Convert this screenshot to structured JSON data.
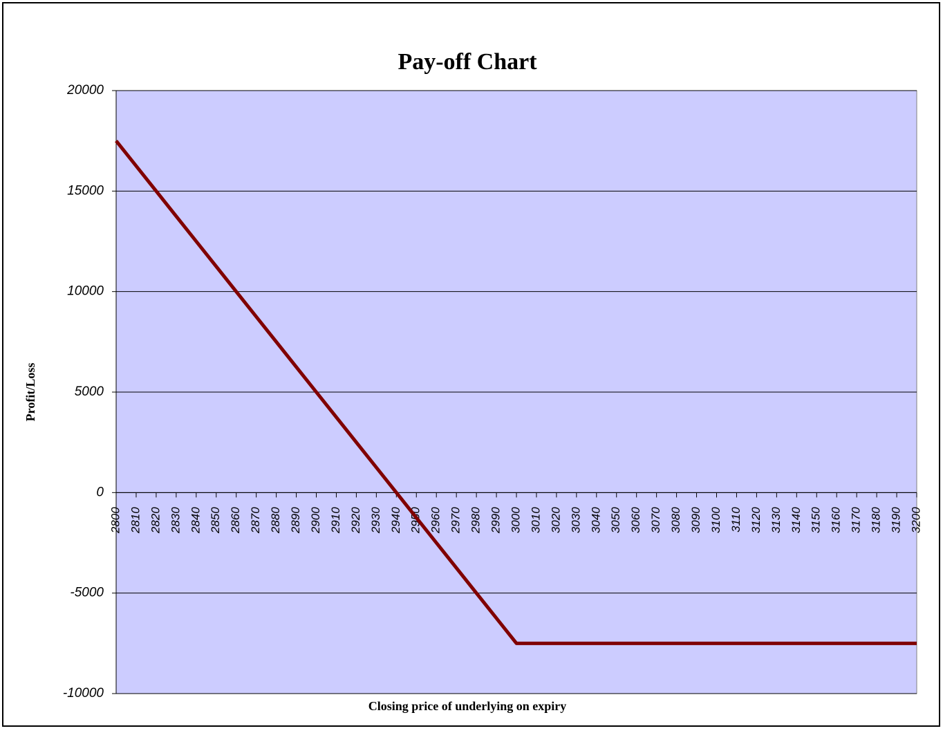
{
  "chart_data": {
    "type": "line",
    "title": "Pay-off Chart",
    "x_label": "Closing price of underlying on expiry",
    "y_label": "Profit/Loss",
    "x": [
      2800,
      2810,
      2820,
      2830,
      2840,
      2850,
      2860,
      2870,
      2880,
      2890,
      2900,
      2910,
      2920,
      2930,
      2940,
      2950,
      2960,
      2970,
      2980,
      2990,
      3000,
      3010,
      3020,
      3030,
      3040,
      3050,
      3060,
      3070,
      3080,
      3090,
      3100,
      3110,
      3120,
      3130,
      3140,
      3150,
      3160,
      3170,
      3180,
      3190,
      3200
    ],
    "values": [
      17500,
      16250,
      15000,
      13750,
      12500,
      11250,
      10000,
      8750,
      7500,
      6250,
      5000,
      3750,
      2500,
      1250,
      0,
      -1250,
      -2500,
      -3750,
      -5000,
      -6250,
      -7500,
      -7500,
      -7500,
      -7500,
      -7500,
      -7500,
      -7500,
      -7500,
      -7500,
      -7500,
      -7500,
      -7500,
      -7500,
      -7500,
      -7500,
      -7500,
      -7500,
      -7500,
      -7500,
      -7500,
      -7500
    ],
    "color": "#800000",
    "xlim": [
      2800,
      3200
    ],
    "xticks": [
      2800,
      2810,
      2820,
      2830,
      2840,
      2850,
      2860,
      2870,
      2880,
      2890,
      2900,
      2910,
      2920,
      2930,
      2940,
      2950,
      2960,
      2970,
      2980,
      2990,
      3000,
      3010,
      3020,
      3030,
      3040,
      3050,
      3060,
      3070,
      3080,
      3090,
      3100,
      3110,
      3120,
      3130,
      3140,
      3150,
      3160,
      3170,
      3180,
      3190,
      3200
    ],
    "ylim": [
      -10000,
      20000
    ],
    "yticks": [
      -10000,
      -5000,
      0,
      5000,
      10000,
      15000,
      20000
    ],
    "grid": true
  }
}
